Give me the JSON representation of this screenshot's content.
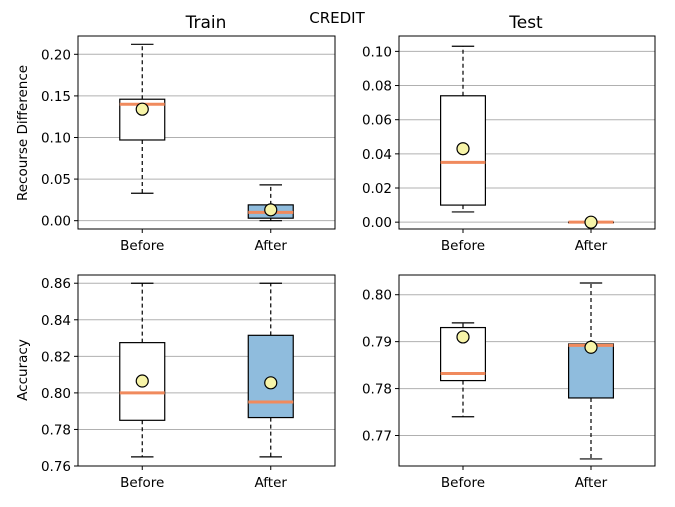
{
  "suptitle": "CREDIT",
  "col_titles": [
    "Train",
    "Test"
  ],
  "row_ylabels": [
    "Recourse Difference",
    "Accuracy"
  ],
  "colors": {
    "before_box": "#ffffff",
    "after_box": "#8fbcdd",
    "median": "#f08a5d",
    "mean_marker": "#f7f4a8",
    "grid": "#b0b0b0"
  },
  "chart_data": [
    {
      "type": "box",
      "title": "Train",
      "ylabel": "Recourse Difference",
      "categories": [
        "Before",
        "After"
      ],
      "ylim": [
        -0.01,
        0.222
      ],
      "yticks": [
        "0.00",
        "0.05",
        "0.10",
        "0.15",
        "0.20"
      ],
      "grid": "y",
      "boxes": [
        {
          "label": "Before",
          "whislo": 0.033,
          "q1": 0.097,
          "med": 0.14,
          "q3": 0.146,
          "whishi": 0.212,
          "mean": 0.134
        },
        {
          "label": "After",
          "whislo": 0.0,
          "q1": 0.003,
          "med": 0.01,
          "q3": 0.019,
          "whishi": 0.043,
          "mean": 0.013
        }
      ]
    },
    {
      "type": "box",
      "title": "Test",
      "ylabel": "",
      "categories": [
        "Before",
        "After"
      ],
      "ylim": [
        -0.004,
        0.109
      ],
      "yticks": [
        "0.00",
        "0.02",
        "0.04",
        "0.06",
        "0.08",
        "0.10"
      ],
      "grid": "y",
      "boxes": [
        {
          "label": "Before",
          "whislo": 0.006,
          "q1": 0.01,
          "med": 0.035,
          "q3": 0.074,
          "whishi": 0.103,
          "mean": 0.043
        },
        {
          "label": "After",
          "whislo": 0.0,
          "q1": 0.0,
          "med": 0.0,
          "q3": 0.0,
          "whishi": 0.0,
          "mean": 0.0
        }
      ]
    },
    {
      "type": "box",
      "title": "",
      "ylabel": "Accuracy",
      "categories": [
        "Before",
        "After"
      ],
      "ylim": [
        0.76,
        0.8645
      ],
      "yticks": [
        "0.76",
        "0.78",
        "0.80",
        "0.82",
        "0.84",
        "0.86"
      ],
      "grid": "y",
      "boxes": [
        {
          "label": "Before",
          "whislo": 0.765,
          "q1": 0.785,
          "med": 0.8,
          "q3": 0.8275,
          "whishi": 0.86,
          "mean": 0.8065
        },
        {
          "label": "After",
          "whislo": 0.765,
          "q1": 0.7865,
          "med": 0.795,
          "q3": 0.8315,
          "whishi": 0.86,
          "mean": 0.8055
        }
      ]
    },
    {
      "type": "box",
      "title": "",
      "ylabel": "",
      "categories": [
        "Before",
        "After"
      ],
      "ylim": [
        0.7635,
        0.8042
      ],
      "yticks": [
        "0.77",
        "0.78",
        "0.79",
        "0.80"
      ],
      "grid": "y",
      "boxes": [
        {
          "label": "Before",
          "whislo": 0.774,
          "q1": 0.7817,
          "med": 0.7832,
          "q3": 0.793,
          "whishi": 0.794,
          "mean": 0.791
        },
        {
          "label": "After",
          "whislo": 0.765,
          "q1": 0.778,
          "med": 0.7892,
          "q3": 0.7895,
          "whishi": 0.8025,
          "mean": 0.7888
        }
      ]
    }
  ]
}
